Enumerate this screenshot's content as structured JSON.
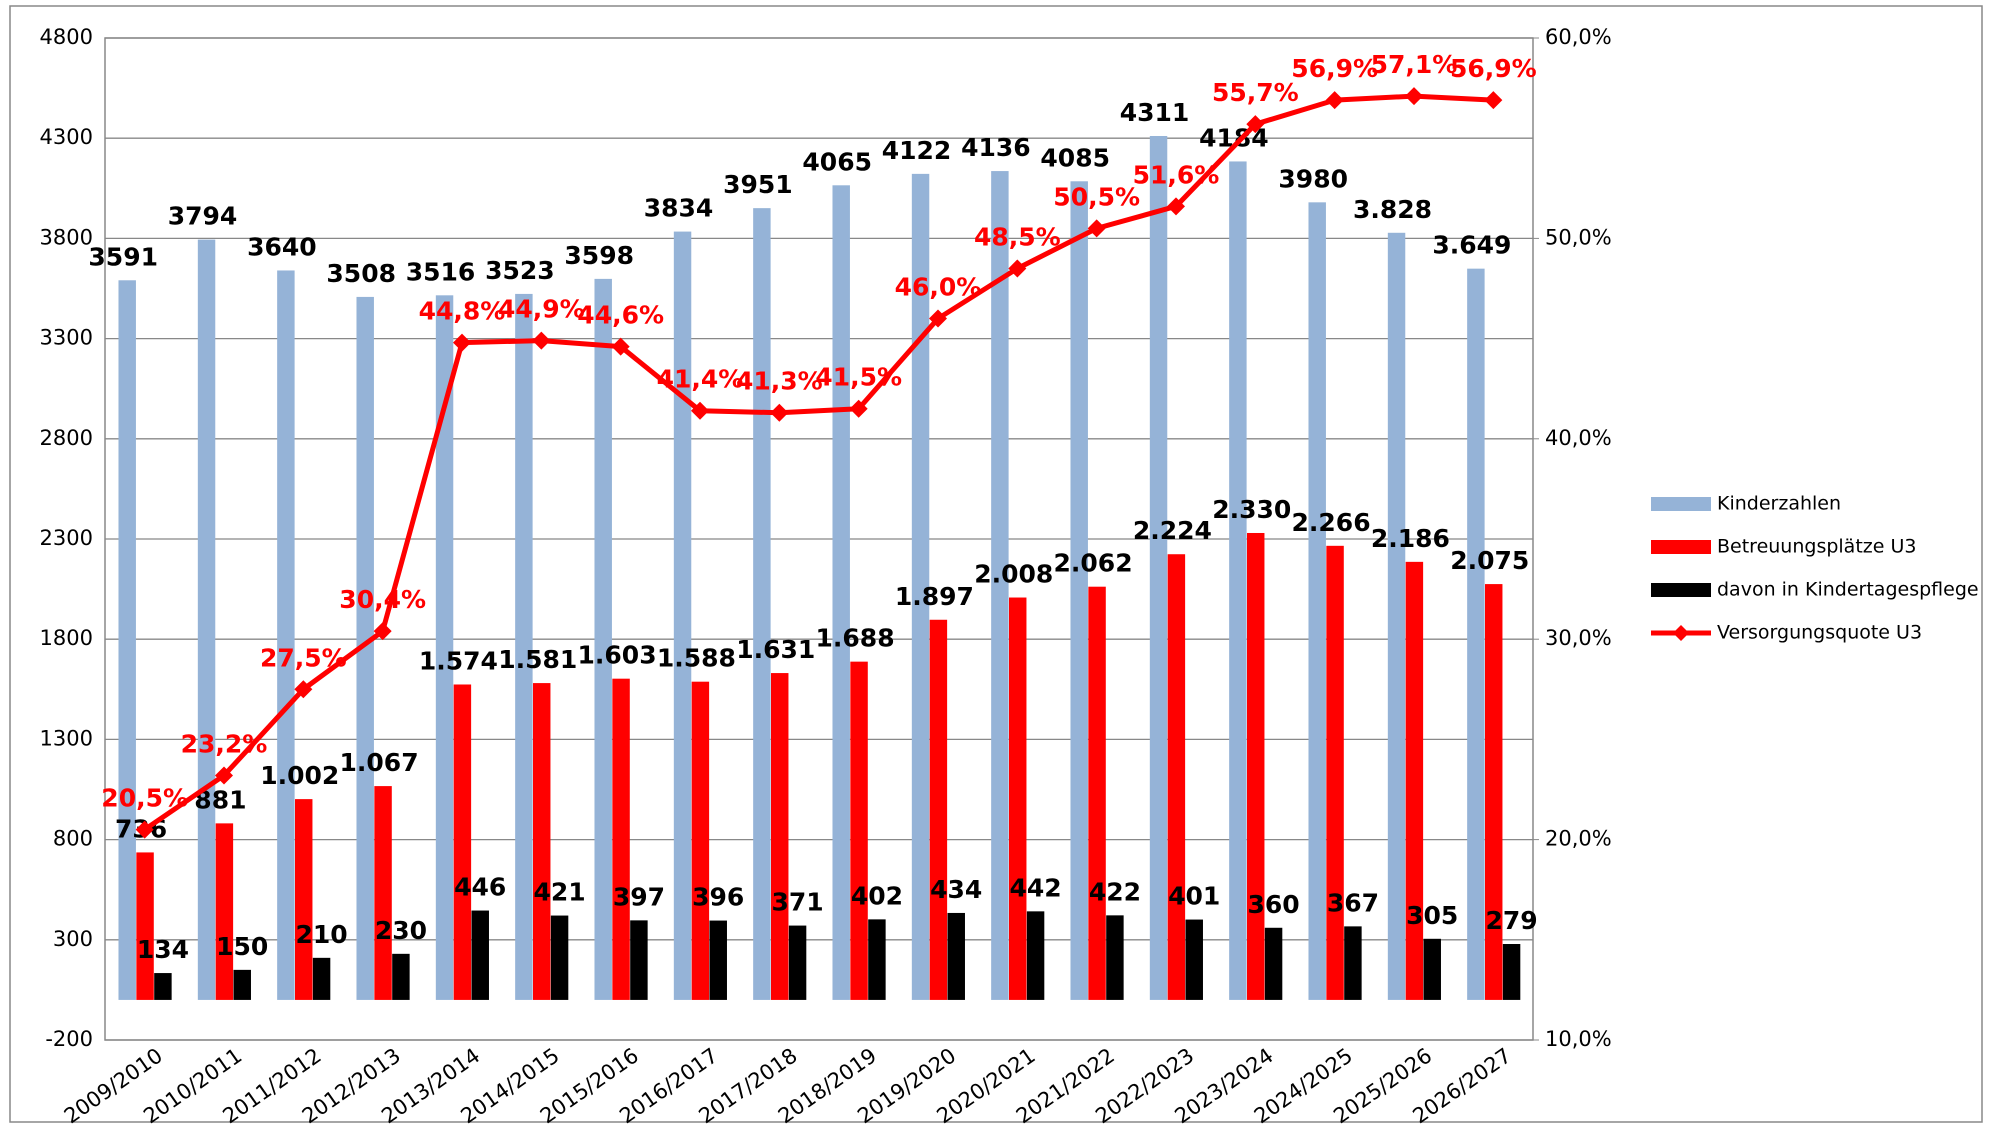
{
  "chart_data": {
    "type": "bar",
    "categories": [
      "2009/2010",
      "2010/2011",
      "2011/2012",
      "2012/2013",
      "2013/2014",
      "2014/2015",
      "2015/2016",
      "2016/2017",
      "2017/2018",
      "2018/2019",
      "2019/2020",
      "2020/2021",
      "2021/2022",
      "2022/2023",
      "2023/2024",
      "2024/2025",
      "2025/2026",
      "2026/2027"
    ],
    "series": [
      {
        "name": "Kinderzahlen",
        "color": "#95b3d7",
        "values": [
          3591,
          3794,
          3640,
          3508,
          3516,
          3523,
          3598,
          3834,
          3951,
          4065,
          4122,
          4136,
          4085,
          4311,
          4184,
          3980,
          3828,
          3649
        ],
        "value_labels": [
          "3591",
          "3794",
          "3640",
          "3508",
          "3516",
          "3523",
          "3598",
          "3834",
          "3951",
          "4065",
          "4122",
          "4136",
          "4085",
          "4311",
          "4184",
          "3980",
          "3.828",
          "3.649"
        ]
      },
      {
        "name": "Betreuungsplätze U3",
        "color": "#ff0000",
        "values": [
          736,
          881,
          1002,
          1067,
          1574,
          1581,
          1603,
          1588,
          1631,
          1688,
          1897,
          2008,
          2062,
          2224,
          2330,
          2266,
          2186,
          2075
        ],
        "value_labels": [
          "736",
          "881",
          "1.002",
          "1.067",
          "1.574",
          "1.581",
          "1.603",
          "1.588",
          "1.631",
          "1.688",
          "1.897",
          "2.008",
          "2.062",
          "2.224",
          "2.330",
          "2.266",
          "2.186",
          "2.075"
        ]
      },
      {
        "name": "davon in Kindertagespflege",
        "color": "#000000",
        "values": [
          134,
          150,
          210,
          230,
          446,
          421,
          397,
          396,
          371,
          402,
          434,
          442,
          422,
          401,
          360,
          367,
          305,
          279
        ]
      },
      {
        "name": "Versorgungsquote U3",
        "color": "#ff0000",
        "type": "line",
        "axis": "y2",
        "values": [
          20.5,
          23.2,
          27.5,
          30.4,
          44.8,
          44.9,
          44.6,
          41.4,
          41.3,
          41.5,
          46.0,
          48.5,
          50.5,
          51.6,
          55.7,
          56.9,
          57.1,
          56.9
        ],
        "value_labels": [
          "20,5%",
          "23,2%",
          "27,5%",
          "30,4%",
          "44,8%",
          "44,9%",
          "44,6%",
          "41,4%",
          "41,3%",
          "41,5%",
          "46,0%",
          "48,5%",
          "50,5%",
          "51,6%",
          "55,7%",
          "56,9%",
          "57,1%",
          "56,9%"
        ]
      }
    ],
    "ylim": [
      -200,
      4800
    ],
    "yticks": [
      -200,
      300,
      800,
      1300,
      1800,
      2300,
      2800,
      3300,
      3800,
      4300,
      4800
    ],
    "y2lim": [
      10,
      60
    ],
    "y2ticks": [
      {
        "value": 10,
        "label": "10,0%"
      },
      {
        "value": 20,
        "label": "20,0%"
      },
      {
        "value": 30,
        "label": "30,0%"
      },
      {
        "value": 40,
        "label": "40,0%"
      },
      {
        "value": 50,
        "label": "50,0%"
      },
      {
        "value": 60,
        "label": "60,0%"
      }
    ],
    "grid": true,
    "legend": "right"
  }
}
